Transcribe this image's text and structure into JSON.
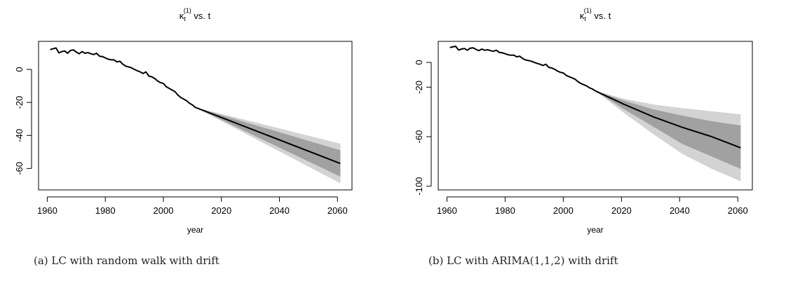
{
  "chart_data": [
    {
      "type": "line",
      "title": "κt(1) vs. t",
      "title_symbol": "κ",
      "title_sub": "t",
      "title_sup": "(1)",
      "title_rest": " vs. t",
      "xlabel": "year",
      "ylabel": "",
      "xlim": [
        1957,
        2065
      ],
      "ylim": [
        -73,
        17
      ],
      "xticks": [
        1960,
        1980,
        2000,
        2020,
        2040,
        2060
      ],
      "yticks": [
        0,
        -20,
        -40,
        -60
      ],
      "grid": false,
      "series": [
        {
          "role": "historical",
          "x": [
            1961,
            1962,
            1963,
            1964,
            1965,
            1966,
            1967,
            1968,
            1969,
            1970,
            1971,
            1972,
            1973,
            1974,
            1975,
            1976,
            1977,
            1978,
            1979,
            1980,
            1981,
            1982,
            1983,
            1984,
            1985,
            1986,
            1987,
            1988,
            1989,
            1990,
            1991,
            1992,
            1993,
            1994,
            1995,
            1996,
            1997,
            1998,
            1999,
            2000,
            2001,
            2002,
            2003,
            2004,
            2005,
            2006,
            2007,
            2008,
            2009,
            2010,
            2011
          ],
          "y": [
            12,
            12.5,
            13,
            10,
            10.8,
            11.2,
            9.8,
            11.5,
            11.8,
            10.5,
            9.5,
            10.8,
            9.8,
            10.2,
            9.5,
            9,
            9.8,
            8,
            7.8,
            7,
            6.2,
            5.8,
            5.8,
            4.5,
            5,
            3.2,
            2,
            1.5,
            1,
            0,
            -0.8,
            -1.5,
            -2.5,
            -1.5,
            -4,
            -4.5,
            -5.5,
            -7,
            -8,
            -8.5,
            -10.5,
            -11.5,
            -12.5,
            -13.5,
            -15.5,
            -17,
            -18,
            -19,
            -20.5,
            -21.5,
            -23
          ]
        },
        {
          "role": "forecast",
          "x": [
            2011,
            2061
          ],
          "y": [
            -23,
            -57
          ],
          "band80": {
            "lower": [
              -23,
              -65
            ],
            "upper": [
              -23,
              -49
            ]
          },
          "band95": {
            "lower": [
              -23,
              -69
            ],
            "upper": [
              -23,
              -45
            ]
          }
        }
      ]
    },
    {
      "type": "line",
      "title": "κt(1) vs. t",
      "title_symbol": "κ",
      "title_sub": "t",
      "title_sup": "(1)",
      "title_rest": " vs. t",
      "xlabel": "year",
      "ylabel": "",
      "xlim": [
        1957,
        2065
      ],
      "ylim": [
        -103,
        17
      ],
      "xticks": [
        1960,
        1980,
        2000,
        2020,
        2040,
        2060
      ],
      "yticks": [
        0,
        -20,
        -60,
        -100
      ],
      "grid": false,
      "series": [
        {
          "role": "historical",
          "x": [
            1961,
            1962,
            1963,
            1964,
            1965,
            1966,
            1967,
            1968,
            1969,
            1970,
            1971,
            1972,
            1973,
            1974,
            1975,
            1976,
            1977,
            1978,
            1979,
            1980,
            1981,
            1982,
            1983,
            1984,
            1985,
            1986,
            1987,
            1988,
            1989,
            1990,
            1991,
            1992,
            1993,
            1994,
            1995,
            1996,
            1997,
            1998,
            1999,
            2000,
            2001,
            2002,
            2003,
            2004,
            2005,
            2006,
            2007,
            2008,
            2009,
            2010,
            2011
          ],
          "y": [
            12,
            12.5,
            13,
            10,
            10.8,
            11.2,
            9.8,
            11.5,
            11.8,
            10.5,
            9.5,
            10.8,
            9.8,
            10.2,
            9.5,
            9,
            9.8,
            8,
            7.8,
            7,
            6.2,
            5.8,
            5.8,
            4.5,
            5,
            3.2,
            2,
            1.5,
            1,
            0,
            -0.8,
            -1.5,
            -2.5,
            -1.5,
            -4,
            -4.5,
            -5.5,
            -7,
            -8,
            -8.5,
            -10.5,
            -11.5,
            -12.5,
            -13.5,
            -15.5,
            -17,
            -18,
            -19,
            -20.5,
            -21.5,
            -23
          ]
        },
        {
          "role": "forecast",
          "x": [
            2011,
            2021,
            2031,
            2041,
            2051,
            2061
          ],
          "y": [
            -23,
            -34,
            -44,
            -52.5,
            -60,
            -69
          ],
          "band80": {
            "lower": [
              -23,
              -38,
              -52,
              -66,
              -76,
              -86
            ],
            "upper": [
              -23,
              -31,
              -38,
              -43,
              -47.5,
              -51
            ]
          },
          "band95": {
            "lower": [
              -23,
              -41,
              -58,
              -74,
              -86,
              -96
            ],
            "upper": [
              -23,
              -29.5,
              -34,
              -37,
              -39.5,
              -42
            ]
          }
        }
      ]
    }
  ],
  "captions": [
    "(a) LC with random walk with drift",
    "(b) LC with ARIMA(1,1,2) with drift"
  ],
  "colors": {
    "band95": "#d3d3d3",
    "band80": "#a1a1a1",
    "line": "#000000",
    "axis": "#000000"
  }
}
